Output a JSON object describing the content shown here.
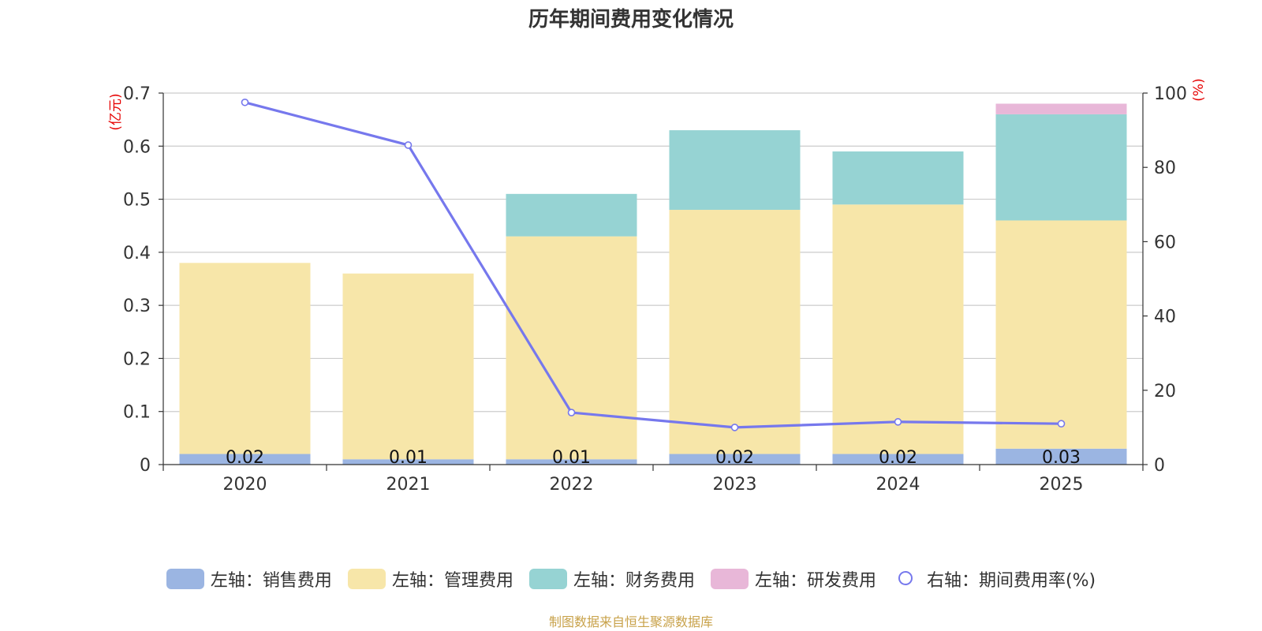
{
  "title": "历年期间费用变化情况",
  "footer": "制图数据来自恒生聚源数据库",
  "chart_data": {
    "type": "bar",
    "stacked": true,
    "categories": [
      "2020",
      "2021",
      "2022",
      "2023",
      "2024",
      "2025"
    ],
    "series": [
      {
        "name": "左轴：销售费用",
        "axis": "left",
        "color": "#9bb5e2",
        "values": [
          0.02,
          0.01,
          0.01,
          0.02,
          0.02,
          0.03
        ],
        "labels": [
          "0.02",
          "0.01",
          "0.01",
          "0.02",
          "0.02",
          "0.03"
        ]
      },
      {
        "name": "左轴：管理费用",
        "axis": "left",
        "color": "#f7e6a9",
        "values": [
          0.36,
          0.35,
          0.42,
          0.46,
          0.47,
          0.43
        ]
      },
      {
        "name": "左轴：财务费用",
        "axis": "left",
        "color": "#96d3d3",
        "values": [
          0,
          0,
          0.08,
          0.15,
          0.1,
          0.2
        ]
      },
      {
        "name": "左轴：研发费用",
        "axis": "left",
        "color": "#e8b7d8",
        "values": [
          0,
          0,
          0,
          0,
          0,
          0.02
        ]
      },
      {
        "name": "右轴：期间费用率(%)",
        "axis": "right",
        "type": "line",
        "color": "#7678ed",
        "values": [
          97.5,
          86,
          14,
          10,
          11.5,
          11
        ]
      }
    ],
    "left_axis": {
      "label": "(亿元)",
      "ylim": [
        0,
        0.7
      ],
      "ticks": [
        "0",
        "0.1",
        "0.2",
        "0.3",
        "0.4",
        "0.5",
        "0.6",
        "0.7"
      ]
    },
    "right_axis": {
      "label": "(%)",
      "ylim": [
        0,
        100
      ],
      "ticks": [
        "0",
        "20",
        "40",
        "60",
        "80",
        "100"
      ]
    },
    "grid": true,
    "legend_position": "bottom"
  }
}
